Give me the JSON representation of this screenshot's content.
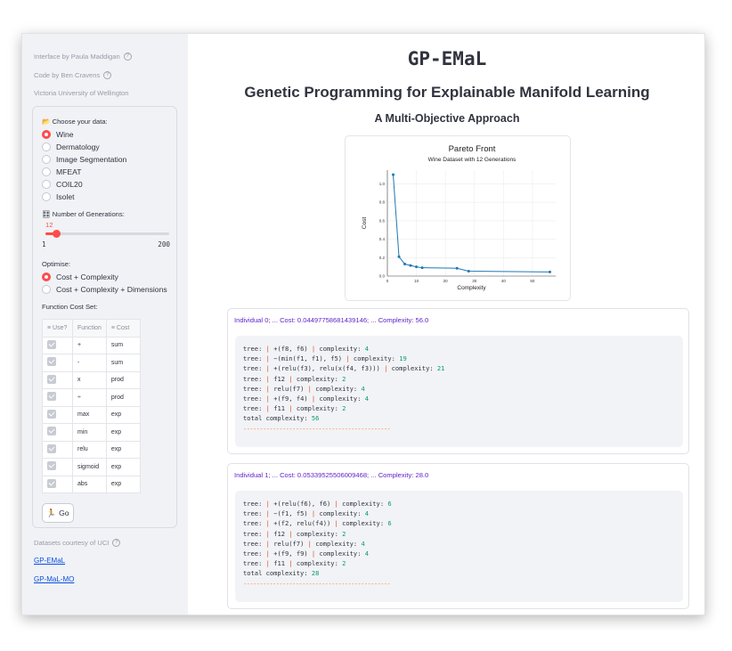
{
  "sidebar": {
    "credits": [
      {
        "text": "Interface by Paula Maddigan",
        "help": true
      },
      {
        "text": "Code by Ben Cravens",
        "help": true
      },
      {
        "text": "Victoria University of Wellington",
        "help": false
      }
    ],
    "dataset_label": "Choose your data:",
    "dataset_icon": "📂",
    "datasets": [
      "Wine",
      "Dermatology",
      "Image Segmentation",
      "MFEAT",
      "COIL20",
      "Isolet"
    ],
    "dataset_selected": "Wine",
    "generations_label": "Number of Generations:",
    "generations_icon": "🎛",
    "generations_value": "12",
    "generations_min": "1",
    "generations_max": "200",
    "optimise_label": "Optimise:",
    "optimise_options": [
      "Cost + Complexity",
      "Cost + Complexity + Dimensions"
    ],
    "optimise_selected": "Cost + Complexity",
    "function_cost_label": "Function Cost Set:",
    "table_headers": [
      "Use?",
      "Function",
      "Cost"
    ],
    "functions": [
      {
        "fn": "+",
        "cost": "sum"
      },
      {
        "fn": "-",
        "cost": "sum"
      },
      {
        "fn": "x",
        "cost": "prod"
      },
      {
        "fn": "÷",
        "cost": "prod"
      },
      {
        "fn": "max",
        "cost": "exp"
      },
      {
        "fn": "min",
        "cost": "exp"
      },
      {
        "fn": "relu",
        "cost": "exp"
      },
      {
        "fn": "sigmoid",
        "cost": "exp"
      },
      {
        "fn": "abs",
        "cost": "exp"
      }
    ],
    "go_label": "Go",
    "go_icon": "🏃",
    "datasets_credit": "Datasets courtesy of UCI",
    "links": [
      "GP-EMaL",
      "GP-MaL-MO"
    ]
  },
  "main": {
    "title": "GP-EMaL",
    "subtitle": "Genetic Programming for Explainable Manifold Learning",
    "section": "A Multi-Objective Approach"
  },
  "chart_data": {
    "type": "line",
    "title": "Pareto Front",
    "subtitle": "Wine Dataset with 12 Generations",
    "xlabel": "Complexity",
    "ylabel": "Cost",
    "x": [
      2,
      4,
      6,
      8,
      10,
      12,
      24,
      28,
      56
    ],
    "y": [
      1.1,
      0.21,
      0.13,
      0.115,
      0.1,
      0.09,
      0.085,
      0.053,
      0.045
    ],
    "xlim": [
      0,
      58
    ],
    "ylim": [
      0,
      1.15
    ],
    "xticks": [
      "0",
      "10",
      "20",
      "30",
      "40",
      "50"
    ],
    "yticks": [
      "0.0",
      "0.2",
      "0.4",
      "0.6",
      "0.8",
      "1.0"
    ],
    "grid": true,
    "color": "#1f77b4"
  },
  "individuals": [
    {
      "title": "Individual 0; ... Cost: 0.04497758681439146; ... Complexity: 56.0",
      "trees": [
        {
          "expr": "+(f8, f6)",
          "complexity": "4"
        },
        {
          "expr": "−(min(f1, f1), f5)",
          "complexity": "19"
        },
        {
          "expr": "+(relu(f3), relu(x(f4, f3)))",
          "complexity": "21"
        },
        {
          "expr": "f12",
          "complexity": "2"
        },
        {
          "expr": "relu(f7)",
          "complexity": "4"
        },
        {
          "expr": "+(f9, f4)",
          "complexity": "4"
        },
        {
          "expr": "f11",
          "complexity": "2"
        }
      ],
      "total": "56"
    },
    {
      "title": "Individual 1; ... Cost: 0.05339525506009468; ... Complexity: 28.0",
      "trees": [
        {
          "expr": "+(relu(f6), f6)",
          "complexity": "6"
        },
        {
          "expr": "−(f1, f5)",
          "complexity": "4"
        },
        {
          "expr": "+(f2, relu(f4))",
          "complexity": "6"
        },
        {
          "expr": "f12",
          "complexity": "2"
        },
        {
          "expr": "relu(f7)",
          "complexity": "4"
        },
        {
          "expr": "+(f9, f9)",
          "complexity": "4"
        },
        {
          "expr": "f11",
          "complexity": "2"
        }
      ],
      "total": "28"
    }
  ],
  "code_tokens": {
    "tree": "tree:",
    "pipe": "|",
    "complexity": "complexity:",
    "total": "total complexity:",
    "dashes": "---------------------------------------------"
  }
}
